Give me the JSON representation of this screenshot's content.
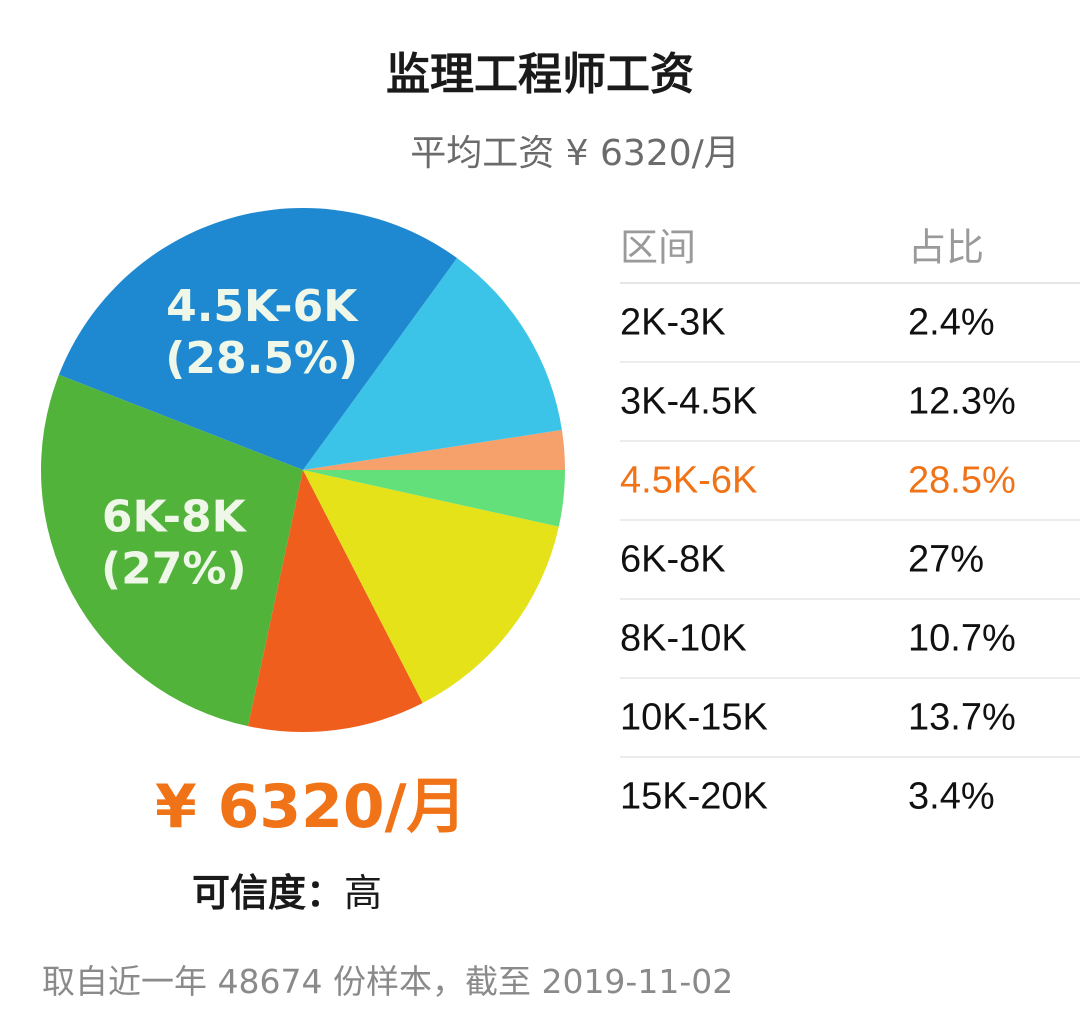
{
  "title": "监理工程师工资",
  "subtitle": "平均工资 ¥ 6320/月",
  "salary_display": "¥ 6320/月",
  "credibility": {
    "label": "可信度：",
    "value": "高"
  },
  "footnote": "取自近一年 48674 份样本，截至 2019-11-02",
  "table": {
    "headers": [
      "区间",
      "占比"
    ],
    "rows": [
      {
        "range": "2K-3K",
        "pct": "2.4%"
      },
      {
        "range": "3K-4.5K",
        "pct": "12.3%"
      },
      {
        "range": "4.5K-6K",
        "pct": "28.5%"
      },
      {
        "range": "6K-8K",
        "pct": "27%"
      },
      {
        "range": "8K-10K",
        "pct": "10.7%"
      },
      {
        "range": "10K-15K",
        "pct": "13.7%"
      },
      {
        "range": "15K-20K",
        "pct": "3.4%"
      }
    ],
    "highlight_color": "#f07318"
  },
  "chart_data": {
    "type": "pie",
    "title": "监理工程师工资",
    "categories": [
      "2K-3K",
      "3K-4.5K",
      "4.5K-6K",
      "6K-8K",
      "8K-10K",
      "10K-15K",
      "15K-20K"
    ],
    "values": [
      2.4,
      12.3,
      28.5,
      27,
      10.7,
      13.7,
      3.4
    ],
    "colors": [
      "#f6a06b",
      "#3cc4e8",
      "#1e88d0",
      "#52b33a",
      "#f05e1e",
      "#e5e21a",
      "#63e07a"
    ],
    "slice_labels": [
      {
        "category": "4.5K-6K",
        "line1": "4.5K-6K",
        "line2": "(28.5%)"
      },
      {
        "category": "6K-8K",
        "line1": "6K-8K",
        "line2": "(27%)"
      }
    ]
  }
}
